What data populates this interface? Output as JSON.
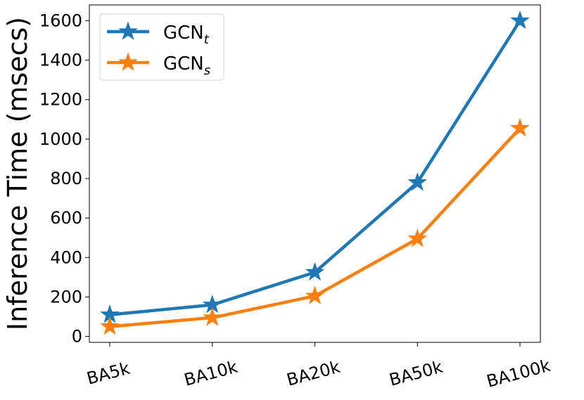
{
  "chart_data": {
    "type": "line",
    "categories": [
      "BA5k",
      "BA10k",
      "BA20k",
      "BA50k",
      "BA100k"
    ],
    "series": [
      {
        "name": "GCN",
        "name_sub": "t",
        "color": "#1f77b4",
        "marker": "star-icon",
        "values": [
          110,
          160,
          325,
          780,
          1600
        ]
      },
      {
        "name": "GCN",
        "name_sub": "s",
        "color": "#ff7f0e",
        "marker": "star-icon",
        "values": [
          50,
          95,
          205,
          495,
          1055
        ]
      }
    ],
    "ylabel": "Inference Time (msecs)",
    "xlabel": "",
    "ylim": [
      -30,
      1680
    ],
    "yticks": [
      0,
      200,
      400,
      600,
      800,
      1000,
      1200,
      1400,
      1600
    ],
    "grid": false,
    "legend_position": "top-left"
  }
}
